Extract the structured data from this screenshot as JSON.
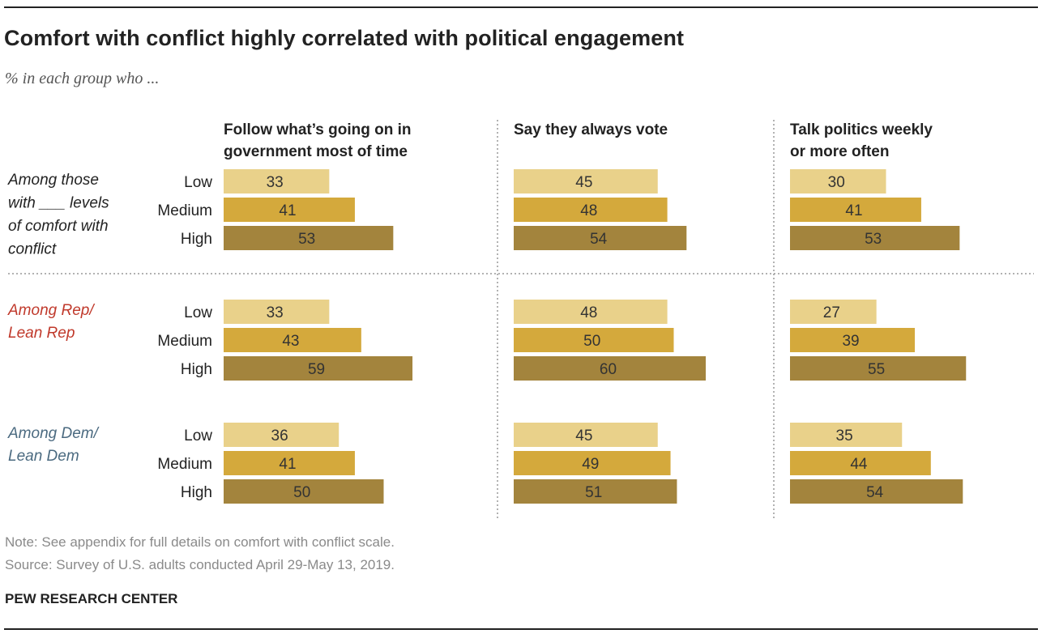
{
  "title": "Comfort with conflict highly correlated with political engagement",
  "subtitle": "% in each group who ...",
  "notes": {
    "note": "Note: See appendix for full details on comfort with conflict scale.",
    "source": "Source: Survey of U.S. adults conducted April 29-May 13, 2019."
  },
  "brand": "PEW RESEARCH CENTER",
  "colors": {
    "low": "#e9d18a",
    "medium": "#d4a93c",
    "high": "#a3843d",
    "rep_label": "#c0392b",
    "dem_label": "#4b6a80",
    "text": "#222222",
    "divider": "#999999"
  },
  "chart_data": {
    "type": "bar",
    "orientation": "horizontal",
    "panels": [
      {
        "label": [
          "Follow what’s going on in",
          "government most of time"
        ]
      },
      {
        "label": [
          "Say they always vote"
        ]
      },
      {
        "label": [
          "Talk politics weekly",
          "or more often"
        ]
      }
    ],
    "levels": [
      "Low",
      "Medium",
      "High"
    ],
    "groups": [
      {
        "name": "Among those with ___ levels of comfort with conflict",
        "label_lines": [
          "Among those",
          "with ___ levels",
          "of comfort with",
          "conflict"
        ],
        "color_key": "text",
        "values": [
          [
            33,
            41,
            53
          ],
          [
            45,
            48,
            54
          ],
          [
            30,
            41,
            53
          ]
        ]
      },
      {
        "name": "Among Rep/ Lean Rep",
        "label_lines": [
          "Among Rep/",
          "Lean Rep"
        ],
        "color_key": "rep_label",
        "values": [
          [
            33,
            43,
            59
          ],
          [
            48,
            50,
            60
          ],
          [
            27,
            39,
            55
          ]
        ]
      },
      {
        "name": "Among Dem/ Lean Dem",
        "label_lines": [
          "Among Dem/",
          "Lean Dem"
        ],
        "color_key": "dem_label",
        "values": [
          [
            36,
            41,
            50
          ],
          [
            45,
            49,
            51
          ],
          [
            35,
            44,
            54
          ]
        ]
      }
    ],
    "xlim": [
      0,
      100
    ],
    "unit": "%"
  }
}
